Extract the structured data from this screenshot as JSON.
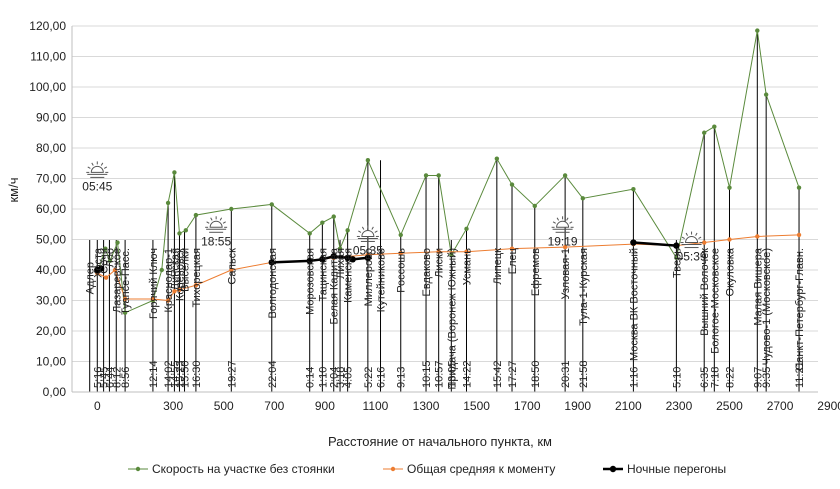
{
  "chart_data": {
    "type": "line",
    "ylabel": "км/ч",
    "xlabel": "Расстояние от начального пункта, км",
    "xlim": [
      -100,
      2850
    ],
    "ylim": [
      0,
      120
    ],
    "x_ticks": [
      0,
      300,
      500,
      700,
      900,
      1100,
      1300,
      1500,
      1700,
      1900,
      2100,
      2300,
      2500,
      2700,
      2900
    ],
    "x_tick_labels": [
      "0",
      "300",
      "500",
      "700",
      "900",
      "1100",
      "1300",
      "1500",
      "1700",
      "1900",
      "2100",
      "2300",
      "2500",
      "2700",
      "2900"
    ],
    "y_ticks": [
      0,
      10,
      20,
      30,
      40,
      50,
      60,
      70,
      80,
      90,
      100,
      110,
      120
    ],
    "y_tick_labels": [
      "0,00",
      "10,00",
      "20,00",
      "30,00",
      "40,00",
      "50,00",
      "60,00",
      "70,00",
      "80,00",
      "90,00",
      "100,00",
      "110,00",
      "120,00"
    ],
    "grid": true,
    "legend": "bottom",
    "colors": {
      "series1": "#5a8a3c",
      "series2": "#ed7d31",
      "series3": "#000000",
      "grid": "#d9d9d9",
      "axis": "#bfbfbf",
      "drop": "#000000"
    },
    "series": [
      {
        "name": "Скорость на участке без стоянки",
        "x": [
          0,
          32,
          50,
          80,
          110,
          220,
          255,
          280,
          305,
          325,
          350,
          390,
          530,
          690,
          840,
          890,
          935,
          960,
          990,
          1070,
          1200,
          1300,
          1350,
          1400,
          1460,
          1580,
          1640,
          1730,
          1850,
          1920,
          2120,
          2290,
          2400,
          2440,
          2500,
          2610,
          2645,
          2775
        ],
        "values": [
          39,
          47,
          43,
          49,
          26,
          30,
          40,
          62,
          72,
          52,
          53,
          58,
          60,
          61.5,
          52,
          55.5,
          57.5,
          47,
          53,
          76,
          51.5,
          71,
          71,
          45,
          53.5,
          76.5,
          68,
          61,
          71,
          63.5,
          66.5,
          44,
          85,
          87,
          67,
          118.5,
          97.5,
          67
        ]
      },
      {
        "name": "Общая средняя к моменту",
        "x": [
          0,
          35,
          70,
          110,
          220,
          280,
          305,
          325,
          390,
          530,
          690,
          840,
          935,
          1070,
          1200,
          1350,
          1460,
          1640,
          1850,
          2120,
          2290,
          2400,
          2500,
          2610,
          2775
        ],
        "values": [
          39,
          37.5,
          40,
          30.5,
          30.5,
          30,
          33,
          33.5,
          35,
          40,
          42.5,
          43,
          44,
          45,
          45.5,
          46,
          46,
          47,
          47.5,
          48.5,
          48,
          49,
          50,
          51,
          51.5
        ]
      },
      {
        "name": "Ночные перегоны",
        "segments": [
          {
            "x": [
              0,
              15
            ],
            "values": [
              40,
              40.5
            ]
          },
          {
            "x": [
              690,
              840,
              890,
              935,
              990,
              1010,
              1070
            ],
            "values": [
              42.5,
              43,
              43.5,
              44.5,
              44,
              43.5,
              44
            ]
          },
          {
            "x": [
              2120,
              2290
            ],
            "values": [
              49,
              48
            ]
          }
        ]
      }
    ],
    "stations": [
      {
        "name": "Адлер",
        "x": -30,
        "time": ""
      },
      {
        "name": "Хоста",
        "x": 0,
        "time": "5:16"
      },
      {
        "name": "Сочи",
        "x": 25,
        "time": "5:45"
      },
      {
        "name": "Лоо",
        "x": 48,
        "time": "6:44"
      },
      {
        "name": "Лазаревское",
        "x": 75,
        "time": "8:12"
      },
      {
        "name": "Туапсе-Пасс.",
        "x": 110,
        "time": "8:56"
      },
      {
        "name": "Горячий Ключ",
        "x": 220,
        "time": "12:14"
      },
      {
        "name": "Краснодар-1",
        "x": 280,
        "time": "14:02"
      },
      {
        "name": "Динская",
        "x": 305,
        "time": "14:55"
      },
      {
        "name": "Кореновск",
        "x": 325,
        "time": "15:23"
      },
      {
        "name": "Выселки",
        "x": 345,
        "time": "15:50"
      },
      {
        "name": "Тихорецкая",
        "x": 390,
        "time": "16:30"
      },
      {
        "name": "Сальск",
        "x": 530,
        "time": "19:27"
      },
      {
        "name": "Волгодонская",
        "x": 690,
        "time": "22:04"
      },
      {
        "name": "Морозовская",
        "x": 840,
        "time": "0:14"
      },
      {
        "name": "Тацинская",
        "x": 890,
        "time": "1:10"
      },
      {
        "name": "Белая Калитва",
        "x": 935,
        "time": "2:04"
      },
      {
        "name": "Лихая",
        "x": 960,
        "time": "3:18"
      },
      {
        "name": "Каменская",
        "x": 990,
        "time": "4:05"
      },
      {
        "name": "Миллерово",
        "x": 1070,
        "time": "5:22"
      },
      {
        "name": "Кутейниково",
        "x": 1120,
        "time": "6:16"
      },
      {
        "name": "Россошь",
        "x": 1200,
        "time": "9:13"
      },
      {
        "name": "Евдаково",
        "x": 1300,
        "time": "10:15"
      },
      {
        "name": "Лиски",
        "x": 1350,
        "time": "10:57"
      },
      {
        "name": "Придача (Воронеж Южный)",
        "x": 1400,
        "time": "13:05"
      },
      {
        "name": "Усмань",
        "x": 1460,
        "time": "14:22"
      },
      {
        "name": "Липецк",
        "x": 1580,
        "time": "15:42"
      },
      {
        "name": "Елец",
        "x": 1640,
        "time": "17:27"
      },
      {
        "name": "Ефремов",
        "x": 1730,
        "time": "18:50"
      },
      {
        "name": "Узловая-1",
        "x": 1850,
        "time": "20:31"
      },
      {
        "name": "Тула-1-Курская",
        "x": 1920,
        "time": "21:58"
      },
      {
        "name": "Москва ВК Восточный",
        "x": 2120,
        "time": "1:16"
      },
      {
        "name": "Тверь",
        "x": 2290,
        "time": "5:10"
      },
      {
        "name": "Вышний Волочёк",
        "x": 2400,
        "time": "6:35"
      },
      {
        "name": "Бологое-Московское",
        "x": 2440,
        "time": "7:18"
      },
      {
        "name": "Окуловка",
        "x": 2500,
        "time": "8:22"
      },
      {
        "name": "Малая Вишера",
        "x": 2610,
        "time": "9:07"
      },
      {
        "name": "Чудово-1 (Московское)",
        "x": 2645,
        "time": "9:35"
      },
      {
        "name": "Санкт-Петербург-Главн.",
        "x": 2775,
        "time": "11:21"
      }
    ],
    "sun_events": [
      {
        "kind": "sunrise",
        "time": "05:45",
        "x": 0,
        "y": 72
      },
      {
        "kind": "sunset",
        "time": "18:55",
        "x": 470,
        "y": 54
      },
      {
        "kind": "sunrise",
        "time": "05:35",
        "x": 1070,
        "y": 51
      },
      {
        "kind": "sunset",
        "time": "19:19",
        "x": 1840,
        "y": 54
      },
      {
        "kind": "sunrise",
        "time": "05:39",
        "x": 2350,
        "y": 49
      }
    ]
  }
}
